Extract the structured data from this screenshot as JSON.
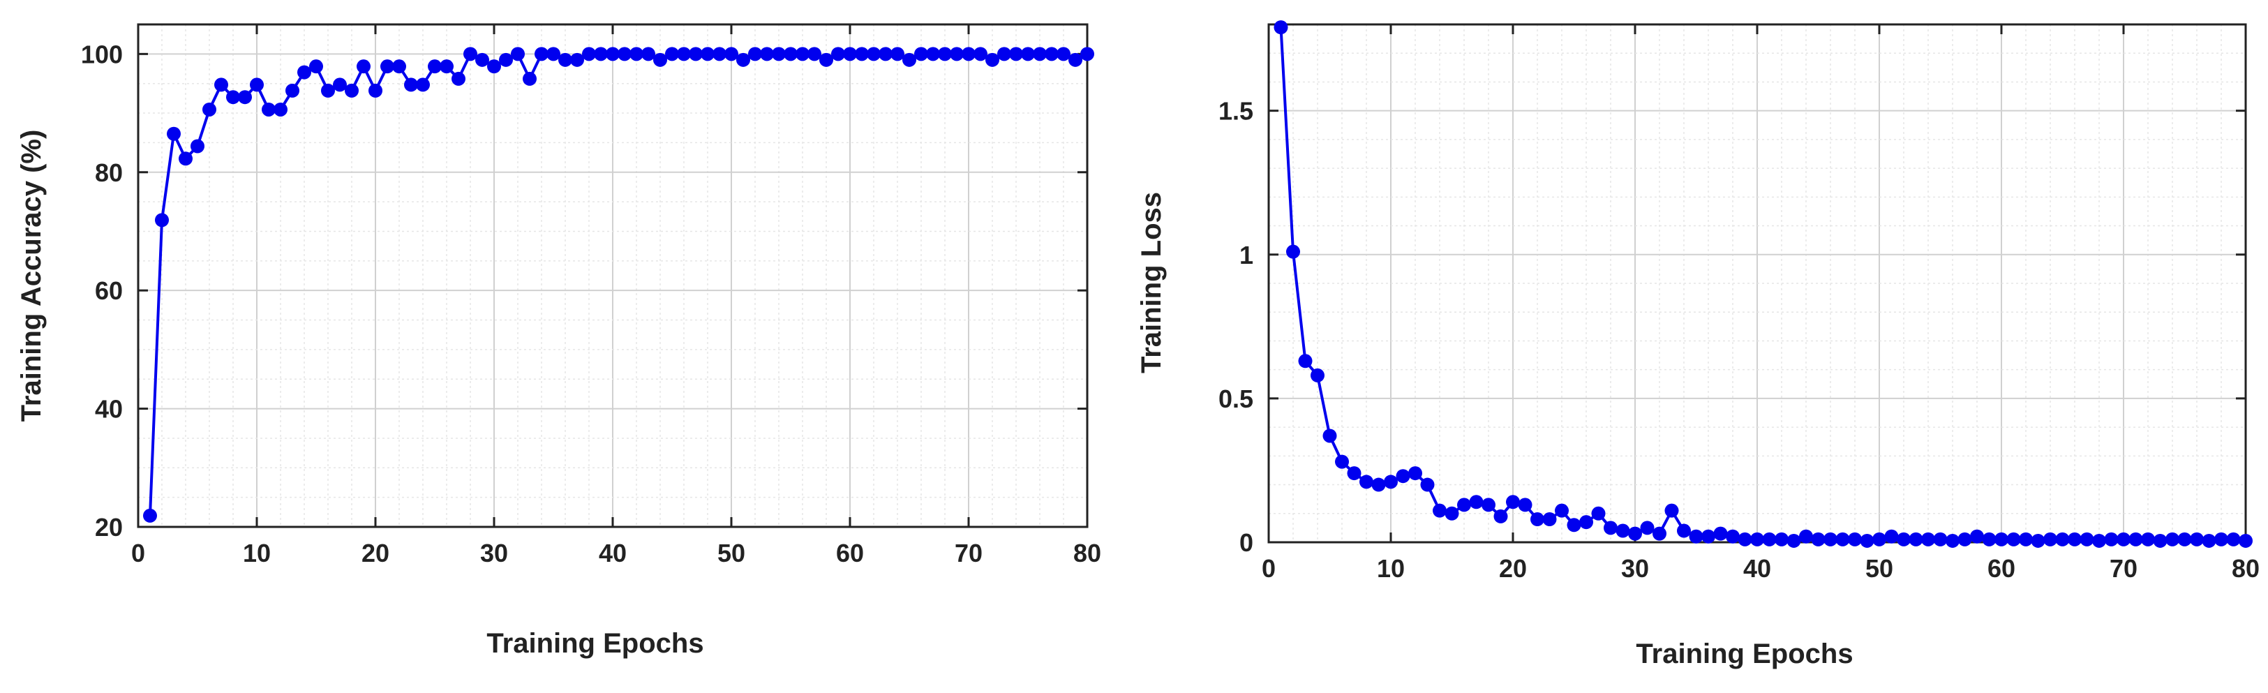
{
  "chart_data": [
    {
      "type": "line",
      "title": "",
      "xlabel": "Training Epochs",
      "ylabel": "Training Accuracy (%)",
      "xlim": [
        0,
        80
      ],
      "ylim": [
        20,
        105
      ],
      "xticks": [
        0,
        10,
        20,
        30,
        40,
        50,
        60,
        70,
        80
      ],
      "yticks": [
        20,
        40,
        60,
        80,
        100
      ],
      "grid": true,
      "legend": "none",
      "color": "#0000ee",
      "series": [
        {
          "x": [
            1,
            2,
            3,
            4,
            5,
            6,
            7,
            8,
            9,
            10,
            11,
            12,
            13,
            14,
            15,
            16,
            17,
            18,
            19,
            20,
            21,
            22,
            23,
            24,
            25,
            26,
            27,
            28,
            29,
            30,
            31,
            32,
            33,
            34,
            35,
            36,
            37,
            38,
            39,
            40,
            41,
            42,
            43,
            44,
            45,
            46,
            47,
            48,
            49,
            50,
            51,
            52,
            53,
            54,
            55,
            56,
            57,
            58,
            59,
            60,
            61,
            62,
            63,
            64,
            65,
            66,
            67,
            68,
            69,
            70,
            71,
            72,
            73,
            74,
            75,
            76,
            77,
            78,
            79,
            80
          ],
          "values": [
            21.9,
            71.9,
            86.5,
            82.3,
            84.4,
            90.6,
            94.8,
            92.7,
            92.7,
            94.8,
            90.6,
            90.6,
            93.8,
            96.9,
            97.9,
            93.8,
            94.8,
            93.8,
            97.9,
            93.8,
            97.9,
            97.9,
            94.8,
            94.8,
            97.9,
            97.9,
            95.8,
            100,
            99,
            97.9,
            99,
            100,
            95.8,
            100,
            100,
            99,
            99,
            100,
            100,
            100,
            100,
            100,
            100,
            99,
            100,
            100,
            100,
            100,
            100,
            100,
            99,
            100,
            100,
            100,
            100,
            100,
            100,
            99,
            100,
            100,
            100,
            100,
            100,
            100,
            99,
            100,
            100,
            100,
            100,
            100,
            100,
            99,
            100,
            100,
            100,
            100,
            100,
            100,
            99,
            100
          ]
        }
      ]
    },
    {
      "type": "line",
      "title": "",
      "xlabel": "Training Epochs",
      "ylabel": "Training Loss",
      "xlim": [
        0,
        80
      ],
      "ylim": [
        0,
        1.8
      ],
      "xticks": [
        0,
        10,
        20,
        30,
        40,
        50,
        60,
        70,
        80
      ],
      "yticks": [
        0,
        0.5,
        1,
        1.5
      ],
      "ytick_labels": [
        "0",
        "0.5",
        "1",
        "1.5"
      ],
      "grid": true,
      "legend": "none",
      "color": "#0000ee",
      "series": [
        {
          "x": [
            1,
            2,
            3,
            4,
            5,
            6,
            7,
            8,
            9,
            10,
            11,
            12,
            13,
            14,
            15,
            16,
            17,
            18,
            19,
            20,
            21,
            22,
            23,
            24,
            25,
            26,
            27,
            28,
            29,
            30,
            31,
            32,
            33,
            34,
            35,
            36,
            37,
            38,
            39,
            40,
            41,
            42,
            43,
            44,
            45,
            46,
            47,
            48,
            49,
            50,
            51,
            52,
            53,
            54,
            55,
            56,
            57,
            58,
            59,
            60,
            61,
            62,
            63,
            64,
            65,
            66,
            67,
            68,
            69,
            70,
            71,
            72,
            73,
            74,
            75,
            76,
            77,
            78,
            79,
            80
          ],
          "values": [
            1.79,
            1.01,
            0.63,
            0.58,
            0.37,
            0.28,
            0.24,
            0.21,
            0.2,
            0.21,
            0.23,
            0.24,
            0.2,
            0.11,
            0.1,
            0.13,
            0.14,
            0.13,
            0.09,
            0.14,
            0.13,
            0.08,
            0.08,
            0.11,
            0.06,
            0.07,
            0.1,
            0.05,
            0.04,
            0.03,
            0.05,
            0.03,
            0.11,
            0.04,
            0.02,
            0.02,
            0.03,
            0.02,
            0.01,
            0.01,
            0.01,
            0.01,
            0.005,
            0.02,
            0.01,
            0.01,
            0.01,
            0.01,
            0.005,
            0.01,
            0.02,
            0.01,
            0.01,
            0.01,
            0.01,
            0.005,
            0.01,
            0.02,
            0.01,
            0.01,
            0.01,
            0.01,
            0.005,
            0.01,
            0.01,
            0.01,
            0.01,
            0.005,
            0.01,
            0.01,
            0.01,
            0.01,
            0.005,
            0.01,
            0.01,
            0.01,
            0.005,
            0.01,
            0.01,
            0.005
          ]
        }
      ]
    }
  ]
}
